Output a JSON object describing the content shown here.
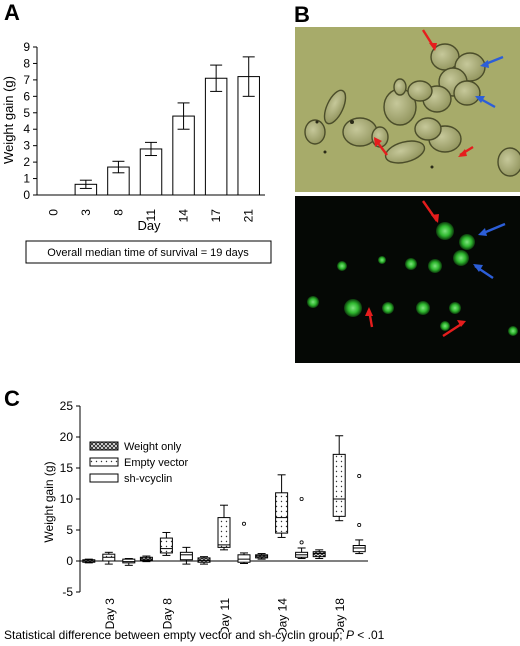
{
  "panels": {
    "a": {
      "letter": "A",
      "chart_data": {
        "type": "bar",
        "categories": [
          "0",
          "3",
          "8",
          "11",
          "14",
          "17",
          "21"
        ],
        "values": [
          0,
          0.65,
          1.7,
          2.8,
          4.8,
          7.1,
          7.2
        ],
        "errors": [
          0,
          0.25,
          0.35,
          0.4,
          0.8,
          0.8,
          1.2
        ],
        "xlabel": "Day",
        "ylabel": "Weight gain (g)",
        "ylim": [
          0,
          9
        ],
        "yticks": [
          0,
          1,
          2,
          3,
          4,
          5,
          6,
          7,
          8,
          9
        ],
        "annotation": "Overall median time of survival = 19 days"
      }
    },
    "b": {
      "letter": "B"
    },
    "c": {
      "letter": "C",
      "chart_data": {
        "type": "box",
        "categories": [
          "Day 3",
          "Day 8",
          "Day 11",
          "Day 14",
          "Day 18"
        ],
        "ylabel": "Weight gain (g)",
        "ylim": [
          -5,
          25
        ],
        "yticks": [
          -5,
          0,
          5,
          10,
          15,
          20,
          25
        ],
        "series": [
          {
            "name": "Weight only",
            "boxes": [
              {
                "min": -0.3,
                "q1": -0.2,
                "median": 0,
                "q3": 0.2,
                "max": 0.3
              },
              {
                "min": -0.1,
                "q1": 0.1,
                "median": 0.3,
                "q3": 0.6,
                "max": 0.8
              },
              {
                "min": -0.5,
                "q1": -0.2,
                "median": 0.1,
                "q3": 0.5,
                "max": 0.7
              },
              {
                "min": 0.3,
                "q1": 0.5,
                "median": 0.8,
                "q3": 1.0,
                "max": 1.2
              },
              {
                "min": 0.4,
                "q1": 0.7,
                "median": 1.2,
                "q3": 1.5,
                "max": 1.8
              }
            ]
          },
          {
            "name": "Empty vector",
            "boxes": [
              {
                "min": -0.5,
                "q1": 0,
                "median": 0.6,
                "q3": 1.1,
                "max": 1.4
              },
              {
                "min": 0.9,
                "q1": 1.3,
                "median": 2.0,
                "q3": 3.7,
                "max": 4.6
              },
              {
                "min": 1.8,
                "q1": 2.2,
                "median": 2.6,
                "q3": 7.0,
                "max": 9.0
              },
              {
                "min": 3.8,
                "q1": 4.5,
                "median": 7.0,
                "q3": 11.0,
                "max": 13.9
              },
              {
                "min": 6.5,
                "q1": 7.2,
                "median": 10.0,
                "q3": 17.2,
                "max": 20.2
              }
            ]
          },
          {
            "name": "sh-vcyclin",
            "boxes": [
              {
                "min": -0.7,
                "q1": -0.3,
                "median": -0.1,
                "q3": 0.3,
                "max": 0.4
              },
              {
                "min": -0.5,
                "q1": 0.2,
                "median": 1.0,
                "q3": 1.4,
                "max": 2.2
              },
              {
                "min": -0.4,
                "q1": -0.2,
                "median": 0.3,
                "q3": 1.0,
                "max": 1.3
              },
              {
                "min": 0.4,
                "q1": 0.6,
                "median": 1.0,
                "q3": 1.4,
                "max": 2.1
              },
              {
                "min": 1.2,
                "q1": 1.5,
                "median": 2.1,
                "q3": 2.5,
                "max": 3.4
              }
            ],
            "outliers": [
              [],
              [],
              [
                6.0
              ],
              [
                10.0,
                3.0
              ],
              [
                13.7,
                5.8
              ]
            ]
          }
        ],
        "footnote_prefix": "Statistical difference between empty vector and sh-cyclin group; ",
        "footnote_p": "P",
        "footnote_value": " < .01"
      }
    }
  },
  "colors": {
    "micrograph_background_top": "#a7ab6a",
    "micrograph_background_bottom": "#050805",
    "cell_green": "#3fc83f",
    "arrow_red": "#e51d1d",
    "arrow_blue": "#2c5ed8"
  }
}
